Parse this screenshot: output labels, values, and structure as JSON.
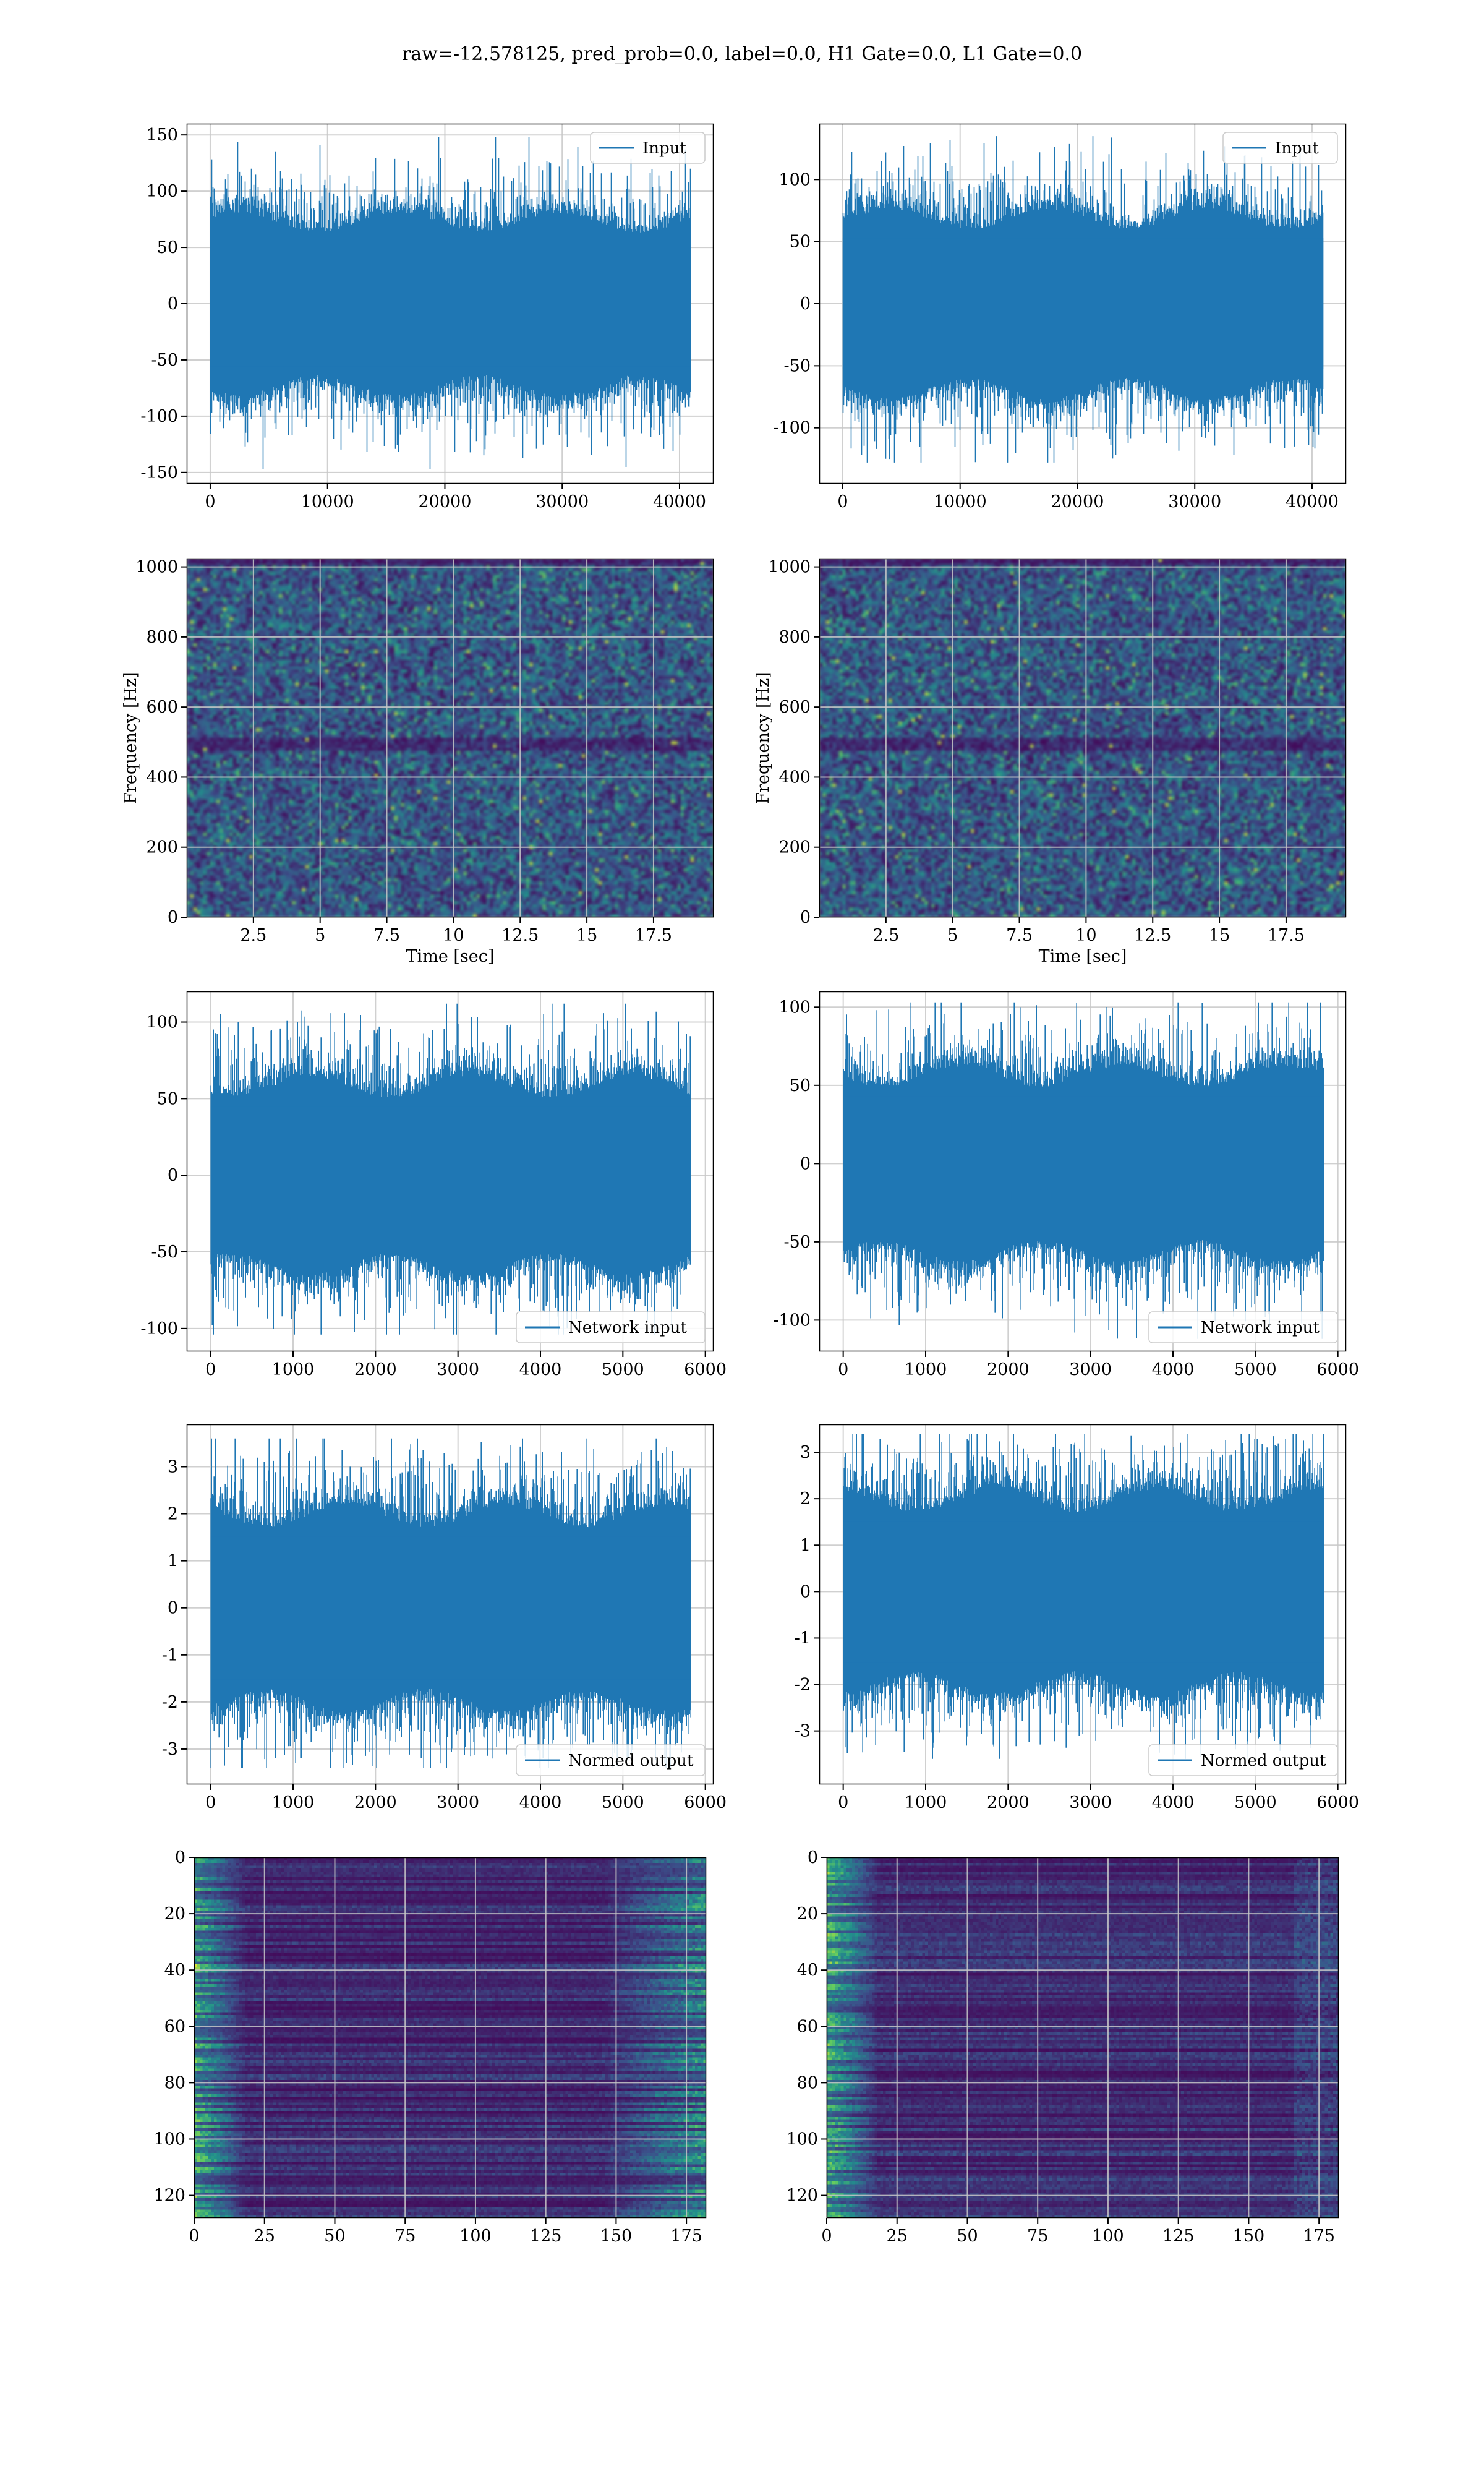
{
  "figure": {
    "suptitle": "raw=-12.578125, pred_prob=0.0, label=0.0, H1 Gate=0.0, L1 Gate=0.0"
  },
  "colors": {
    "line": "#1f77b4",
    "grid": "#c8c8c8",
    "viridis": [
      "#440154",
      "#3b528b",
      "#21918c",
      "#5ec962",
      "#fde725"
    ]
  },
  "chart_data": [
    {
      "id": "input-h1",
      "type": "line",
      "legend": {
        "label": "Input",
        "loc": "upper right"
      },
      "xlim": [
        -2000,
        42900
      ],
      "ylim": [
        -160,
        160
      ],
      "xticks": [
        0,
        10000,
        20000,
        30000,
        40000
      ],
      "yticks": [
        -150,
        -100,
        -50,
        0,
        50,
        100,
        150
      ],
      "grid": true,
      "series": {
        "n_samples": 40960,
        "mean": 0,
        "std": 35,
        "max": 148,
        "min": -147
      }
    },
    {
      "id": "input-l1",
      "type": "line",
      "legend": {
        "label": "Input",
        "loc": "upper right"
      },
      "xlim": [
        -2000,
        42900
      ],
      "ylim": [
        -145,
        145
      ],
      "xticks": [
        0,
        10000,
        20000,
        30000,
        40000
      ],
      "yticks": [
        -100,
        -50,
        0,
        50,
        100
      ],
      "grid": true,
      "series": {
        "n_samples": 40960,
        "mean": 0,
        "std": 33,
        "max": 135,
        "min": -128
      }
    },
    {
      "id": "spec-h1",
      "type": "heatmap",
      "xlabel": "Time [sec]",
      "ylabel": "Frequency [Hz]",
      "xlim": [
        0,
        19.75
      ],
      "ylim": [
        0,
        1024
      ],
      "xticks": [
        2.5,
        5.0,
        7.5,
        10.0,
        12.5,
        15.0,
        17.5
      ],
      "yticks": [
        0,
        200,
        400,
        600,
        800,
        1000
      ],
      "grid": true,
      "colormap": "viridis"
    },
    {
      "id": "spec-l1",
      "type": "heatmap",
      "xlabel": "Time [sec]",
      "ylabel": "Frequency [Hz]",
      "xlim": [
        0,
        19.75
      ],
      "ylim": [
        0,
        1024
      ],
      "xticks": [
        2.5,
        5.0,
        7.5,
        10.0,
        12.5,
        15.0,
        17.5
      ],
      "yticks": [
        0,
        200,
        400,
        600,
        800,
        1000
      ],
      "grid": true,
      "colormap": "viridis"
    },
    {
      "id": "network-input-h1",
      "type": "line",
      "legend": {
        "label": "Network input",
        "loc": "lower right"
      },
      "xlim": [
        -290,
        6100
      ],
      "ylim": [
        -115,
        120
      ],
      "xticks": [
        0,
        1000,
        2000,
        3000,
        4000,
        5000,
        6000
      ],
      "yticks": [
        -100,
        -50,
        0,
        50,
        100
      ],
      "grid": true,
      "series": {
        "n_samples": 5826,
        "mean": 0,
        "std": 28,
        "max": 112,
        "min": -104
      }
    },
    {
      "id": "network-input-l1",
      "type": "line",
      "legend": {
        "label": "Network input",
        "loc": "lower right"
      },
      "xlim": [
        -290,
        6100
      ],
      "ylim": [
        -120,
        110
      ],
      "xticks": [
        0,
        1000,
        2000,
        3000,
        4000,
        5000,
        6000
      ],
      "yticks": [
        -100,
        -50,
        0,
        50,
        100
      ],
      "grid": true,
      "series": {
        "n_samples": 5826,
        "mean": 0,
        "std": 27,
        "max": 103,
        "min": -112
      }
    },
    {
      "id": "normed-output-h1",
      "type": "line",
      "legend": {
        "label": "Normed output",
        "loc": "lower right"
      },
      "xlim": [
        -290,
        6100
      ],
      "ylim": [
        -3.75,
        3.9
      ],
      "xticks": [
        0,
        1000,
        2000,
        3000,
        4000,
        5000,
        6000
      ],
      "yticks": [
        -3,
        -2,
        -1,
        0,
        1,
        2,
        3
      ],
      "grid": true,
      "series": {
        "n_samples": 5826,
        "mean": 0,
        "std": 0.95,
        "max": 3.6,
        "min": -3.4
      }
    },
    {
      "id": "normed-output-l1",
      "type": "line",
      "legend": {
        "label": "Normed output",
        "loc": "lower right"
      },
      "xlim": [
        -290,
        6100
      ],
      "ylim": [
        -4.15,
        3.6
      ],
      "xticks": [
        0,
        1000,
        2000,
        3000,
        4000,
        5000,
        6000
      ],
      "yticks": [
        -3,
        -2,
        -1,
        0,
        1,
        2,
        3
      ],
      "grid": true,
      "series": {
        "n_samples": 5826,
        "mean": 0,
        "std": 0.95,
        "max": 3.4,
        "min": -3.6
      }
    },
    {
      "id": "feature-map-h1",
      "type": "heatmap",
      "xlim": [
        0,
        182
      ],
      "ylim": [
        128,
        0
      ],
      "xticks": [
        0,
        25,
        50,
        75,
        100,
        125,
        150,
        175
      ],
      "yticks": [
        0,
        20,
        40,
        60,
        80,
        100,
        120
      ],
      "grid": true,
      "colormap": "viridis"
    },
    {
      "id": "feature-map-l1",
      "type": "heatmap",
      "xlim": [
        0,
        182
      ],
      "ylim": [
        128,
        0
      ],
      "xticks": [
        0,
        25,
        50,
        75,
        100,
        125,
        150,
        175
      ],
      "yticks": [
        0,
        20,
        40,
        60,
        80,
        100,
        120
      ],
      "grid": true,
      "colormap": "viridis"
    }
  ]
}
